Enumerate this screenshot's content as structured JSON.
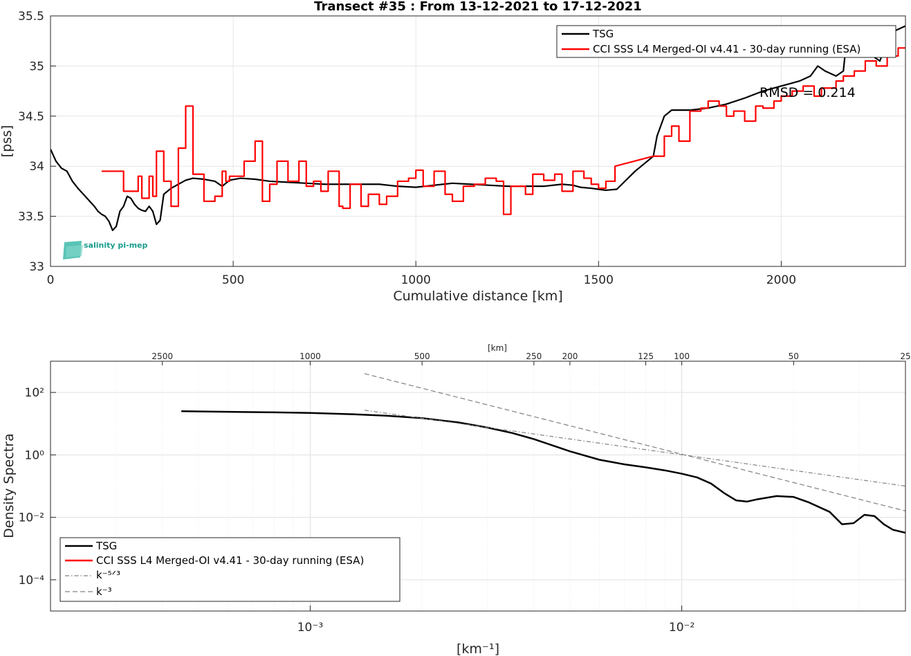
{
  "chart_data": [
    {
      "type": "line",
      "title": "Transect #35 : From 13-12-2021 to 17-12-2021",
      "xlabel": "Cumulative distance [km]",
      "ylabel": "[pss]",
      "xlim": [
        0,
        2340
      ],
      "ylim": [
        33,
        35.5
      ],
      "xticks": [
        "0",
        "500",
        "1000",
        "1500",
        "2000"
      ],
      "xtick_values": [
        0,
        500,
        1000,
        1500,
        2000
      ],
      "yticks": [
        "33",
        "33.5",
        "34",
        "34.5",
        "35",
        "35.5"
      ],
      "ytick_values": [
        33,
        33.5,
        34,
        34.5,
        35,
        35.5
      ],
      "grid": true,
      "legend_position": "top-right",
      "annotation": "RMSD = 0.214",
      "logo": "salinity pi-mep",
      "series": [
        {
          "name": "TSG",
          "color": "#000000",
          "x": [
            0,
            15,
            30,
            45,
            60,
            75,
            90,
            100,
            110,
            120,
            130,
            140,
            150,
            160,
            170,
            180,
            190,
            200,
            210,
            220,
            230,
            240,
            250,
            260,
            270,
            280,
            290,
            300,
            310,
            330,
            350,
            370,
            390,
            420,
            450,
            470,
            490,
            520,
            560,
            600,
            650,
            700,
            750,
            800,
            850,
            900,
            950,
            1000,
            1050,
            1100,
            1150,
            1200,
            1250,
            1300,
            1350,
            1400,
            1430,
            1450,
            1480,
            1500,
            1520,
            1550,
            1600,
            1650,
            1660,
            1680,
            1700,
            1750,
            1800,
            1850,
            1900,
            1950,
            2000,
            2050,
            2080,
            2100,
            2120,
            2150,
            2170,
            2180,
            2200,
            2220,
            2250,
            2270,
            2290,
            2310,
            2340
          ],
          "y": [
            34.17,
            34.05,
            33.98,
            33.95,
            33.85,
            33.78,
            33.72,
            33.68,
            33.64,
            33.6,
            33.55,
            33.52,
            33.5,
            33.45,
            33.36,
            33.4,
            33.55,
            33.6,
            33.7,
            33.68,
            33.62,
            33.58,
            33.56,
            33.55,
            33.6,
            33.55,
            33.42,
            33.46,
            33.72,
            33.78,
            33.82,
            33.86,
            33.88,
            33.87,
            33.85,
            33.8,
            33.86,
            33.88,
            33.87,
            33.85,
            33.84,
            33.83,
            33.82,
            33.82,
            33.82,
            33.82,
            33.8,
            33.79,
            33.81,
            33.83,
            33.82,
            33.81,
            33.8,
            33.8,
            33.8,
            33.82,
            33.81,
            33.79,
            33.78,
            33.77,
            33.76,
            33.77,
            33.95,
            34.1,
            34.3,
            34.5,
            34.56,
            34.56,
            34.58,
            34.62,
            34.68,
            34.75,
            34.8,
            34.85,
            34.9,
            35.0,
            34.95,
            34.9,
            34.95,
            35.3,
            35.2,
            35.15,
            35.1,
            35.05,
            35.25,
            35.35,
            35.4
          ]
        },
        {
          "name": "CCI SSS L4 Merged-OI v4.41 - 30-day running (ESA)",
          "color": "#ff0000",
          "x": [
            140,
            150,
            200,
            230,
            240,
            250,
            270,
            280,
            290,
            310,
            330,
            350,
            370,
            390,
            420,
            450,
            470,
            480,
            490,
            510,
            530,
            560,
            580,
            600,
            620,
            650,
            680,
            700,
            720,
            740,
            760,
            790,
            800,
            820,
            850,
            870,
            900,
            920,
            950,
            980,
            1000,
            1020,
            1050,
            1080,
            1100,
            1130,
            1160,
            1190,
            1220,
            1240,
            1260,
            1300,
            1320,
            1350,
            1380,
            1400,
            1430,
            1460,
            1480,
            1500,
            1520,
            1545,
            1650,
            1680,
            1700,
            1720,
            1750,
            1780,
            1800,
            1830,
            1850,
            1870,
            1900,
            1930,
            1950,
            1980,
            2000,
            2030,
            2060,
            2090,
            2110,
            2150,
            2170,
            2200,
            2230,
            2260,
            2290,
            2320,
            2340
          ],
          "y": [
            33.95,
            33.95,
            33.75,
            33.75,
            33.9,
            33.68,
            33.9,
            33.7,
            34.15,
            33.85,
            33.6,
            34.18,
            34.6,
            33.92,
            33.65,
            33.7,
            33.95,
            33.85,
            33.9,
            33.9,
            34.05,
            34.25,
            33.65,
            33.82,
            34.05,
            33.85,
            34.05,
            33.8,
            33.85,
            33.75,
            33.95,
            33.6,
            33.58,
            33.82,
            33.6,
            33.72,
            33.62,
            33.7,
            33.85,
            33.88,
            33.96,
            33.8,
            33.95,
            33.72,
            33.65,
            33.8,
            33.82,
            33.88,
            33.85,
            33.52,
            33.8,
            33.72,
            33.92,
            33.86,
            33.92,
            33.75,
            33.95,
            33.88,
            33.82,
            33.78,
            33.85,
            34.0,
            34.1,
            34.3,
            34.4,
            34.25,
            34.55,
            34.58,
            34.65,
            34.6,
            34.5,
            34.55,
            34.45,
            34.6,
            34.58,
            34.65,
            34.7,
            34.75,
            34.8,
            34.7,
            34.78,
            34.85,
            34.9,
            34.95,
            35.05,
            35.0,
            35.1,
            35.18,
            35.18
          ]
        }
      ]
    },
    {
      "type": "line",
      "xlabel": "[km⁻¹]",
      "ylabel": "Density Spectra",
      "top_axis_label": "[km]",
      "x_scale": "log",
      "y_scale": "log",
      "xlim": [
        0.0002,
        0.04
      ],
      "ylim": [
        1e-05,
        1000
      ],
      "xticks": [
        "10⁻³",
        "10⁻²"
      ],
      "xtick_values": [
        0.001,
        0.01
      ],
      "top_xticks": [
        "2500",
        "1000",
        "500",
        "250",
        "200",
        "125",
        "100",
        "50",
        "25"
      ],
      "top_xtick_values": [
        2500,
        1000,
        500,
        250,
        200,
        125,
        100,
        50,
        25
      ],
      "yticks": [
        "10⁻⁴",
        "10⁻²",
        "10⁰",
        "10²"
      ],
      "ytick_values": [
        0.0001,
        0.01,
        1,
        100
      ],
      "grid": true,
      "legend_position": "bottom-left",
      "series": [
        {
          "name": "TSG",
          "color": "#000000",
          "x": [
            0.00045,
            0.0006,
            0.0008,
            0.001,
            0.0013,
            0.0016,
            0.002,
            0.0025,
            0.003,
            0.0035,
            0.004,
            0.005,
            0.006,
            0.007,
            0.008,
            0.009,
            0.01,
            0.011,
            0.012,
            0.013,
            0.014,
            0.015,
            0.016,
            0.018,
            0.02,
            0.022,
            0.025,
            0.027,
            0.029,
            0.031,
            0.033,
            0.035,
            0.037,
            0.04
          ],
          "y": [
            25,
            24,
            23,
            22,
            20,
            18,
            15,
            11,
            7.5,
            5,
            3.2,
            1.3,
            0.7,
            0.5,
            0.4,
            0.32,
            0.25,
            0.19,
            0.12,
            0.06,
            0.035,
            0.032,
            0.038,
            0.048,
            0.045,
            0.03,
            0.015,
            0.006,
            0.0065,
            0.012,
            0.011,
            0.006,
            0.004,
            0.0032
          ]
        },
        {
          "name": "CCI SSS L4 Merged-OI v4.41 - 30-day running (ESA)",
          "color": "#ff0000",
          "x": [],
          "y": []
        },
        {
          "name": "k⁻⁵ᐟ³",
          "color": "#808080",
          "style": "dash-dot",
          "x": [
            0.0014,
            0.04
          ],
          "y": [
            27,
            0.1
          ]
        },
        {
          "name": "k⁻³",
          "color": "#808080",
          "style": "dashed",
          "x": [
            0.0014,
            0.04
          ],
          "y": [
            400,
            0.016
          ]
        }
      ]
    }
  ]
}
